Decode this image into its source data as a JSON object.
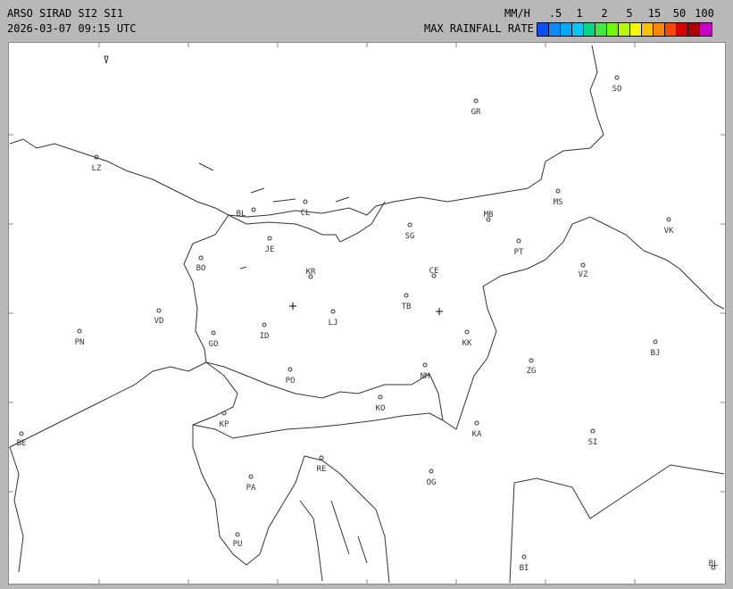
{
  "header": {
    "title": "ARSO SIRAD SI2 SI1",
    "datetime": "2026-03-07 09:15 UTC",
    "unit": "MM/H",
    "legend_label": "MAX RAINFALL RATE"
  },
  "legend": {
    "ticks": [
      ".5",
      "1",
      "2",
      "5",
      "15",
      "50",
      "100"
    ],
    "colors": [
      "#0a50f8",
      "#0a8cf8",
      "#00aaf8",
      "#00c8f8",
      "#00d888",
      "#40e840",
      "#70f800",
      "#b8f800",
      "#f8f800",
      "#f8c000",
      "#f88800",
      "#f84800",
      "#d80000",
      "#b00000",
      "#c800c8"
    ]
  },
  "map": {
    "stations": [
      "GR",
      "SO",
      "LZ",
      "BL",
      "CL",
      "MS",
      "MB",
      "VK",
      "SG",
      "JE",
      "PT",
      "BO",
      "KR",
      "CE",
      "VZ",
      "TB",
      "VD",
      "LJ",
      "ID",
      "PN",
      "GO",
      "KK",
      "BJ",
      "ZG",
      "PO",
      "NM",
      "KO",
      "KP",
      "KA",
      "SI",
      "BE",
      "RE",
      "OG",
      "PA",
      "PU",
      "BI",
      "BL"
    ],
    "radar_sites": [
      "cross",
      "cross"
    ]
  }
}
